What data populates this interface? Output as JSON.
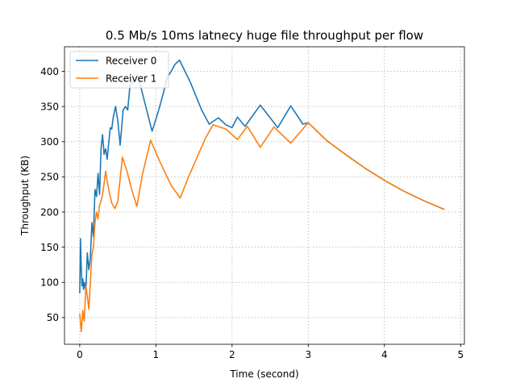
{
  "chart_data": {
    "type": "line",
    "title": "0.5 Mb/s 10ms latnecy huge file throughput per flow",
    "xlabel": "Time (second)",
    "ylabel": "Throughput (KB)",
    "xlim": [
      -0.2,
      5.05
    ],
    "ylim": [
      12,
      435
    ],
    "xticks": [
      0,
      1,
      2,
      3,
      4,
      5
    ],
    "xtick_labels": [
      "0",
      "1",
      "2",
      "3",
      "4",
      "5"
    ],
    "yticks": [
      50,
      100,
      150,
      200,
      250,
      300,
      350,
      400
    ],
    "ytick_labels": [
      "50",
      "100",
      "150",
      "200",
      "250",
      "300",
      "350",
      "400"
    ],
    "grid": true,
    "legend_position": "top-left",
    "series": [
      {
        "name": "Receiver 0",
        "color": "#1f77b4",
        "points": [
          [
            0.0,
            85
          ],
          [
            0.01,
            162
          ],
          [
            0.02,
            120
          ],
          [
            0.03,
            95
          ],
          [
            0.04,
            105
          ],
          [
            0.05,
            90
          ],
          [
            0.06,
            100
          ],
          [
            0.08,
            88
          ],
          [
            0.1,
            142
          ],
          [
            0.12,
            118
          ],
          [
            0.14,
            135
          ],
          [
            0.16,
            185
          ],
          [
            0.18,
            165
          ],
          [
            0.2,
            232
          ],
          [
            0.22,
            222
          ],
          [
            0.24,
            255
          ],
          [
            0.26,
            225
          ],
          [
            0.28,
            290
          ],
          [
            0.3,
            310
          ],
          [
            0.32,
            282
          ],
          [
            0.34,
            290
          ],
          [
            0.36,
            275
          ],
          [
            0.4,
            320
          ],
          [
            0.42,
            318
          ],
          [
            0.44,
            335
          ],
          [
            0.47,
            350
          ],
          [
            0.5,
            330
          ],
          [
            0.53,
            295
          ],
          [
            0.55,
            320
          ],
          [
            0.57,
            345
          ],
          [
            0.6,
            350
          ],
          [
            0.63,
            345
          ],
          [
            0.66,
            380
          ],
          [
            0.7,
            385
          ],
          [
            0.73,
            388
          ],
          [
            0.76,
            395
          ],
          [
            0.82,
            370
          ],
          [
            0.95,
            315
          ],
          [
            1.0,
            332
          ],
          [
            1.05,
            350
          ],
          [
            1.1,
            370
          ],
          [
            1.15,
            392
          ],
          [
            1.2,
            400
          ],
          [
            1.25,
            410
          ],
          [
            1.31,
            416
          ],
          [
            1.45,
            385
          ],
          [
            1.6,
            345
          ],
          [
            1.7,
            325
          ],
          [
            1.82,
            334
          ],
          [
            1.92,
            324
          ],
          [
            2.0,
            320
          ],
          [
            2.07,
            335
          ],
          [
            2.17,
            322
          ],
          [
            2.37,
            352
          ],
          [
            2.6,
            320
          ],
          [
            2.77,
            351
          ],
          [
            2.93,
            325
          ],
          [
            3.0,
            327
          ],
          [
            3.25,
            301
          ],
          [
            3.5,
            281
          ],
          [
            3.75,
            262
          ],
          [
            4.0,
            245
          ],
          [
            4.25,
            230
          ],
          [
            4.5,
            217
          ],
          [
            4.78,
            204
          ]
        ]
      },
      {
        "name": "Receiver 1",
        "color": "#ff7f0e",
        "points": [
          [
            0.0,
            55
          ],
          [
            0.02,
            30
          ],
          [
            0.04,
            60
          ],
          [
            0.06,
            45
          ],
          [
            0.08,
            95
          ],
          [
            0.1,
            80
          ],
          [
            0.12,
            62
          ],
          [
            0.14,
            100
          ],
          [
            0.16,
            140
          ],
          [
            0.18,
            150
          ],
          [
            0.2,
            185
          ],
          [
            0.22,
            200
          ],
          [
            0.24,
            190
          ],
          [
            0.26,
            210
          ],
          [
            0.28,
            215
          ],
          [
            0.3,
            225
          ],
          [
            0.32,
            240
          ],
          [
            0.34,
            258
          ],
          [
            0.38,
            232
          ],
          [
            0.42,
            213
          ],
          [
            0.46,
            205
          ],
          [
            0.5,
            215
          ],
          [
            0.56,
            278
          ],
          [
            0.62,
            258
          ],
          [
            0.68,
            233
          ],
          [
            0.75,
            208
          ],
          [
            0.82,
            252
          ],
          [
            0.93,
            302
          ],
          [
            1.05,
            272
          ],
          [
            1.2,
            238
          ],
          [
            1.32,
            220
          ],
          [
            1.42,
            248
          ],
          [
            1.55,
            280
          ],
          [
            1.65,
            305
          ],
          [
            1.75,
            324
          ],
          [
            1.92,
            318
          ],
          [
            2.07,
            303
          ],
          [
            2.2,
            322
          ],
          [
            2.37,
            292
          ],
          [
            2.55,
            321
          ],
          [
            2.77,
            298
          ],
          [
            3.0,
            327
          ],
          [
            3.25,
            301
          ],
          [
            3.5,
            281
          ],
          [
            3.75,
            262
          ],
          [
            4.0,
            245
          ],
          [
            4.25,
            230
          ],
          [
            4.5,
            217
          ],
          [
            4.78,
            204
          ]
        ]
      }
    ]
  }
}
